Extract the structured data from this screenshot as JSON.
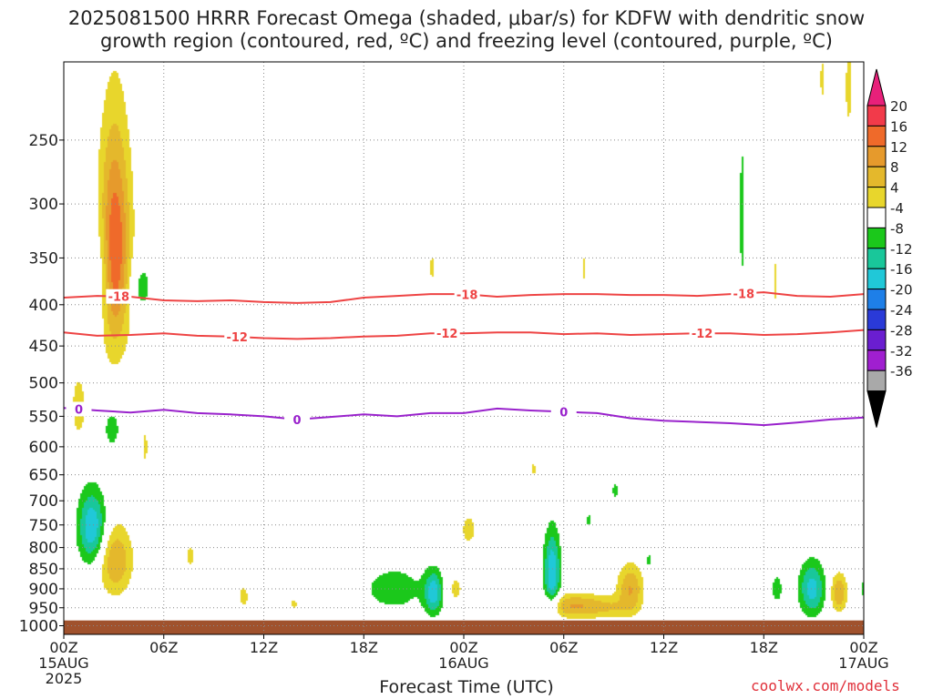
{
  "chart_data": {
    "type": "heatmap",
    "title": "2025081500 HRRR Forecast Omega (shaded, μbar/s) for KDFW with dendritic snow",
    "subtitle": "growth region (contoured, red, ºC) and freezing level (contoured, purple, ºC)",
    "xlabel": "Forecast Time (UTC)",
    "ylabel": "",
    "credit": "coolwx.com/models",
    "x_ticks": [
      {
        "hour": 0,
        "label": "00Z",
        "sub1": "15AUG",
        "sub2": "2025"
      },
      {
        "hour": 6,
        "label": "06Z"
      },
      {
        "hour": 12,
        "label": "12Z"
      },
      {
        "hour": 18,
        "label": "18Z"
      },
      {
        "hour": 24,
        "label": "00Z",
        "sub1": "16AUG"
      },
      {
        "hour": 30,
        "label": "06Z"
      },
      {
        "hour": 36,
        "label": "12Z"
      },
      {
        "hour": 42,
        "label": "18Z"
      },
      {
        "hour": 48,
        "label": "00Z",
        "sub1": "17AUG"
      }
    ],
    "xlim": [
      0,
      48
    ],
    "y_ticks": [
      250,
      300,
      350,
      400,
      450,
      500,
      550,
      600,
      650,
      700,
      750,
      800,
      850,
      900,
      950,
      1000
    ],
    "ylim": [
      1025,
      200
    ],
    "y_scale": "log",
    "grid": true,
    "colorbar": {
      "levels": [
        -36,
        -32,
        -28,
        -24,
        -20,
        -16,
        -12,
        -8,
        -4,
        4,
        8,
        12,
        16,
        20
      ],
      "colors": [
        "#a9a9a9",
        "#a01fd0",
        "#6a1ed0",
        "#2a3ad8",
        "#1e7fe8",
        "#20c8d8",
        "#19c79a",
        "#1bc81b",
        "#ffffff",
        "#e8d62c",
        "#e4b82c",
        "#e69a2c",
        "#ef6a2a",
        "#f23a4a"
      ],
      "under_color": "#000000",
      "over_color": "#e8207a"
    },
    "ground_color": "#a0522d",
    "omega_features": [
      {
        "t": 0.9,
        "p": 535,
        "dt": 0.45,
        "dp": 52,
        "max": 6
      },
      {
        "t": 2.3,
        "p": 365,
        "dt": 0.45,
        "dp": 55,
        "max": -6
      },
      {
        "t": 3.05,
        "p": 340,
        "dt": 0.85,
        "dp": 95,
        "max": 20
      },
      {
        "t": 2.9,
        "p": 570,
        "dt": 0.5,
        "dp": 32,
        "max": -6
      },
      {
        "t": 4.6,
        "p": 380,
        "dt": 0.7,
        "dp": 30,
        "max": -6
      },
      {
        "t": 4.9,
        "p": 600,
        "dt": 0.16,
        "dp": 40,
        "max": 5
      },
      {
        "t": 1.7,
        "p": 755,
        "dt": 0.75,
        "dp": 70,
        "max": -16
      },
      {
        "t": 3.1,
        "p": 830,
        "dt": 0.9,
        "dp": 75,
        "max": 12
      },
      {
        "t": 7.6,
        "p": 820,
        "dt": 0.35,
        "dp": 35,
        "max": 5
      },
      {
        "t": 10.8,
        "p": 920,
        "dt": 0.4,
        "dp": 40,
        "max": 5
      },
      {
        "t": 13.8,
        "p": 940,
        "dt": 0.3,
        "dp": 16,
        "max": 5
      },
      {
        "t": 19.8,
        "p": 900,
        "dt": 1.9,
        "dp": 60,
        "max": -6
      },
      {
        "t": 22.2,
        "p": 910,
        "dt": 0.5,
        "dp": 50,
        "max": -14
      },
      {
        "t": 23.5,
        "p": 900,
        "dt": 0.6,
        "dp": 50,
        "max": 5
      },
      {
        "t": 24.3,
        "p": 760,
        "dt": 0.6,
        "dp": 45,
        "max": 5
      },
      {
        "t": 22.1,
        "p": 360,
        "dt": 0.16,
        "dp": 22,
        "max": 5
      },
      {
        "t": 28.2,
        "p": 640,
        "dt": 0.2,
        "dp": 18,
        "max": 5
      },
      {
        "t": 29.3,
        "p": 860,
        "dt": 0.45,
        "dp": 90,
        "max": -16
      },
      {
        "t": 30.6,
        "p": 945,
        "dt": 1.7,
        "dp": 30,
        "max": 12
      },
      {
        "t": 32.8,
        "p": 950,
        "dt": 1.2,
        "dp": 25,
        "max": 5
      },
      {
        "t": 34.0,
        "p": 900,
        "dt": 0.7,
        "dp": 55,
        "max": 12
      },
      {
        "t": 31.2,
        "p": 360,
        "dt": 0.12,
        "dp": 20,
        "max": 5
      },
      {
        "t": 31.5,
        "p": 740,
        "dt": 0.12,
        "dp": 16,
        "max": -6
      },
      {
        "t": 33.1,
        "p": 680,
        "dt": 0.2,
        "dp": 18,
        "max": -6
      },
      {
        "t": 35.1,
        "p": 830,
        "dt": 0.2,
        "dp": 18,
        "max": -6
      },
      {
        "t": 40.7,
        "p": 310,
        "dt": 0.16,
        "dp": 70,
        "max": -6
      },
      {
        "t": 42.7,
        "p": 375,
        "dt": 0.2,
        "dp": 35,
        "max": 5
      },
      {
        "t": 42.8,
        "p": 900,
        "dt": 0.35,
        "dp": 40,
        "max": -6
      },
      {
        "t": 44.9,
        "p": 900,
        "dt": 0.7,
        "dp": 62,
        "max": -14
      },
      {
        "t": 46.5,
        "p": 910,
        "dt": 0.45,
        "dp": 45,
        "max": 12
      },
      {
        "t": 45.5,
        "p": 210,
        "dt": 0.15,
        "dp": 20,
        "max": 5
      },
      {
        "t": 47.1,
        "p": 215,
        "dt": 0.3,
        "dp": 35,
        "max": 5
      },
      {
        "t": 47.95,
        "p": 900,
        "dt": 0.12,
        "dp": 25,
        "max": -6
      }
    ],
    "contours": [
      {
        "level": -18,
        "color": "#ee4444",
        "labels": [
          {
            "t": 3.3,
            "label": "-18"
          },
          {
            "t": 24.2,
            "label": "-18"
          },
          {
            "t": 40.8,
            "label": "-18"
          }
        ],
        "t": [
          0,
          2,
          4,
          6,
          8,
          10,
          12,
          14,
          16,
          18,
          20,
          22,
          24,
          26,
          28,
          30,
          32,
          34,
          36,
          38,
          40,
          42,
          44,
          46,
          48
        ],
        "p": [
          392,
          390,
          391,
          395,
          396,
          395,
          397,
          398,
          397,
          392,
          390,
          388,
          388,
          391,
          389,
          388,
          388,
          389,
          389,
          390,
          388,
          386,
          390,
          391,
          388
        ]
      },
      {
        "level": -12,
        "color": "#ee4444",
        "labels": [
          {
            "t": 10.4,
            "label": "-12"
          },
          {
            "t": 23.0,
            "label": "-12"
          },
          {
            "t": 38.3,
            "label": "-12"
          }
        ],
        "t": [
          0,
          2,
          4,
          6,
          8,
          10,
          12,
          14,
          16,
          18,
          20,
          22,
          24,
          26,
          28,
          30,
          32,
          34,
          36,
          38,
          40,
          42,
          44,
          46,
          48
        ],
        "p": [
          433,
          437,
          436,
          434,
          437,
          438,
          440,
          441,
          440,
          438,
          437,
          434,
          434,
          433,
          433,
          435,
          434,
          436,
          435,
          434,
          434,
          436,
          435,
          433,
          430
        ]
      },
      {
        "level": 0,
        "color": "#9922cc",
        "labels": [
          {
            "t": 0.9,
            "label": "0"
          },
          {
            "t": 14.0,
            "label": "0"
          },
          {
            "t": 30.0,
            "label": "0"
          }
        ],
        "t": [
          0,
          2,
          4,
          6,
          8,
          10,
          12,
          14,
          16,
          18,
          20,
          22,
          24,
          26,
          28,
          30,
          32,
          34,
          36,
          38,
          40,
          42,
          44,
          46,
          48
        ],
        "p": [
          537,
          541,
          544,
          540,
          545,
          547,
          550,
          555,
          551,
          547,
          550,
          545,
          545,
          538,
          541,
          543,
          545,
          553,
          557,
          559,
          561,
          564,
          560,
          555,
          552
        ]
      }
    ]
  }
}
